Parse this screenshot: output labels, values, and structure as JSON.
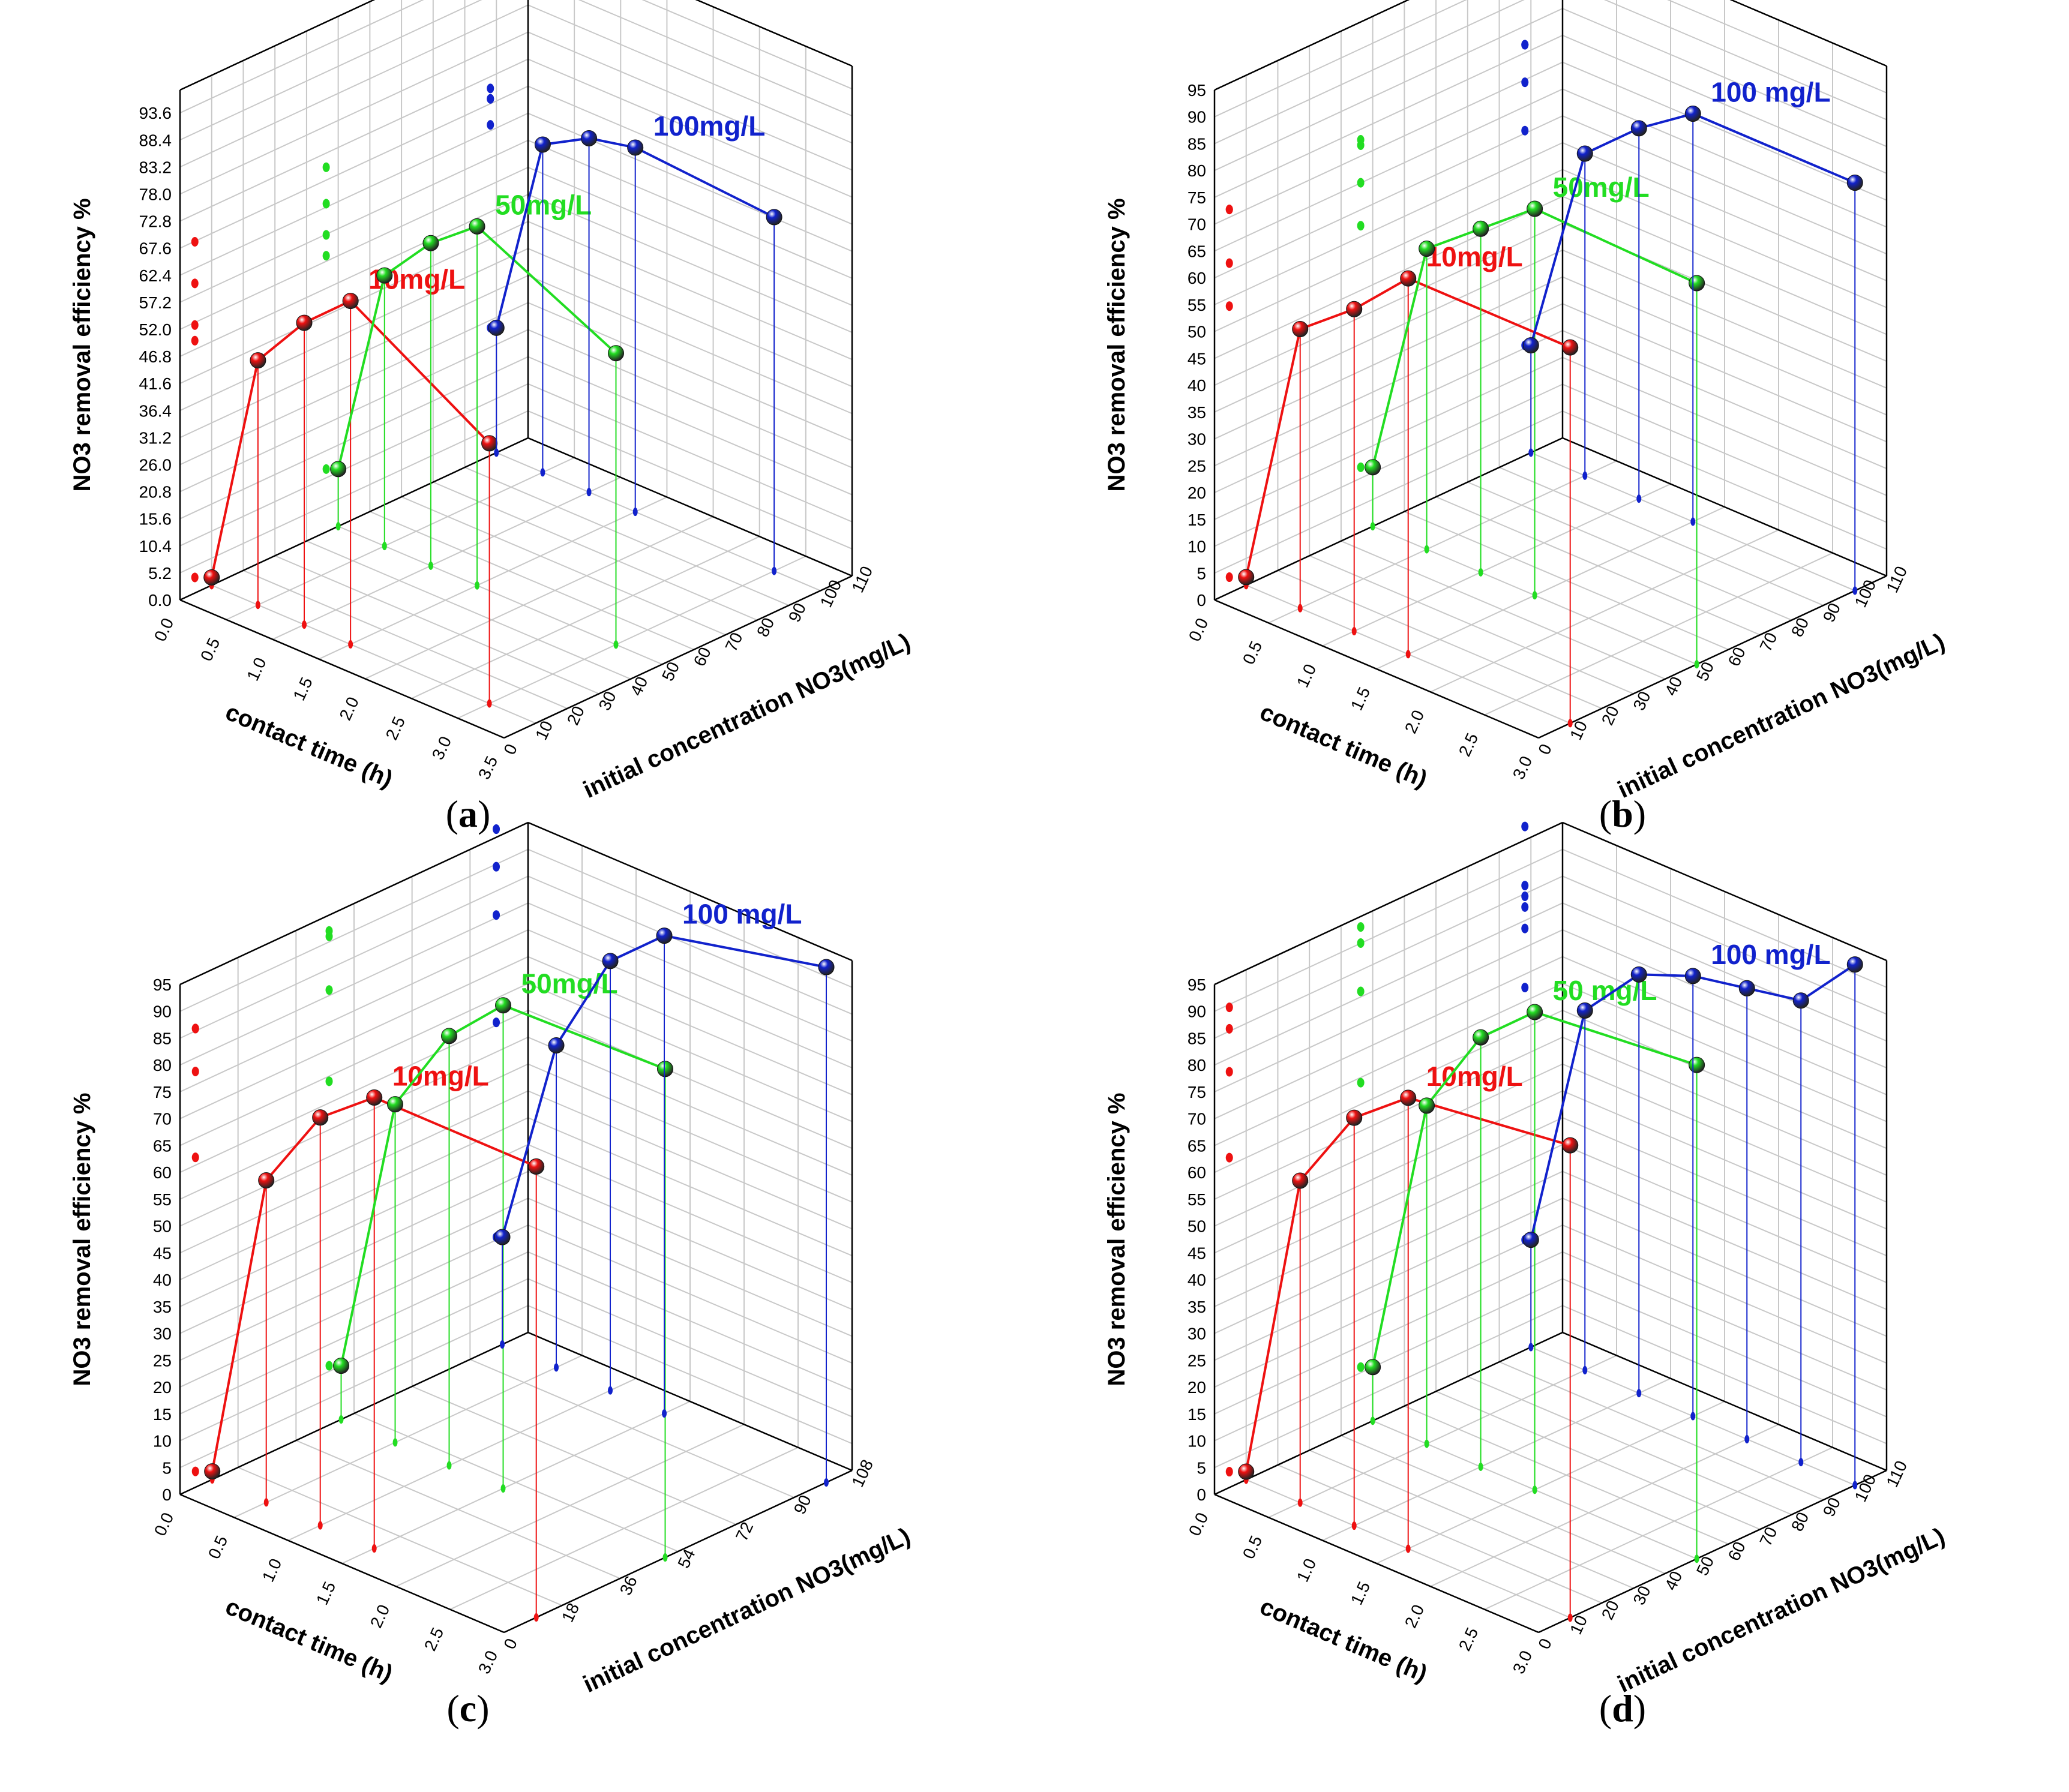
{
  "figure": {
    "captions": [
      "a",
      "b",
      "c",
      "d"
    ]
  },
  "chart_data": [
    {
      "type": "scatter",
      "panel": "a",
      "zlabel": "NO3 removal efficiency %",
      "xlabel": "contact time (h)",
      "ylabel": "initial concentration NO3(mg/L)",
      "zticks": [
        "0.0",
        "5.2",
        "10.4",
        "15.6",
        "20.8",
        "26.0",
        "31.2",
        "36.4",
        "41.6",
        "46.8",
        "52.0",
        "57.2",
        "62.4",
        "67.6",
        "72.8",
        "78.0",
        "83.2",
        "88.4",
        "93.6"
      ],
      "zlim": [
        0,
        98
      ],
      "xticks": [
        "0.0",
        "0.5",
        "1.0",
        "1.5",
        "2.0",
        "2.5",
        "3.0",
        "3.5"
      ],
      "xlim": [
        0,
        3.5
      ],
      "yticks": [
        "0",
        "10",
        "20",
        "30",
        "40",
        "50",
        "60",
        "70",
        "80",
        "90",
        "100",
        "110"
      ],
      "ylim": [
        0,
        110
      ],
      "series": [
        {
          "name": "10mg/L",
          "color": "#ee1111",
          "conc": 10,
          "x": [
            0.0,
            0.5,
            1.0,
            1.5,
            3.0
          ],
          "z": [
            1.5,
            47,
            58,
            66,
            50
          ]
        },
        {
          "name": "50mg/L",
          "color": "#22dd22",
          "conc": 50,
          "x": [
            0.0,
            0.5,
            1.0,
            1.5,
            3.0
          ],
          "z": [
            11,
            52,
            62,
            69,
            56
          ]
        },
        {
          "name": "100mg/L",
          "color": "#1122cc",
          "conc": 100,
          "x": [
            0.0,
            0.5,
            1.0,
            1.5,
            3.0
          ],
          "z": [
            24,
            63,
            68,
            70,
            68
          ]
        }
      ]
    },
    {
      "type": "scatter",
      "panel": "b",
      "zlabel": "NO3 removal efficiency %",
      "xlabel": "contact time (h)",
      "ylabel": "initial concentration NO3(mg/L)",
      "zticks": [
        "0",
        "5",
        "10",
        "15",
        "20",
        "25",
        "30",
        "35",
        "40",
        "45",
        "50",
        "55",
        "60",
        "65",
        "70",
        "75",
        "80",
        "85",
        "90",
        "95"
      ],
      "zlim": [
        0,
        95
      ],
      "xticks": [
        "0.0",
        "0.5",
        "1.0",
        "1.5",
        "2.0",
        "2.5",
        "3.0"
      ],
      "xlim": [
        0,
        3
      ],
      "yticks": [
        "0",
        "10",
        "20",
        "30",
        "40",
        "50",
        "60",
        "70",
        "80",
        "90",
        "100",
        "110"
      ],
      "ylim": [
        0,
        110
      ],
      "series": [
        {
          "name": "10mg/L",
          "color": "#ee1111",
          "conc": 10,
          "x": [
            0.0,
            0.5,
            1.0,
            1.5,
            3.0
          ],
          "z": [
            1.5,
            52,
            60,
            70,
            70
          ]
        },
        {
          "name": "50mg/L",
          "color": "#22dd22",
          "conc": 50,
          "x": [
            0.0,
            0.5,
            1.0,
            1.5,
            3.0
          ],
          "z": [
            11,
            56,
            64,
            72,
            71
          ]
        },
        {
          "name": "100 mg/L",
          "color": "#1122cc",
          "conc": 100,
          "x": [
            0.0,
            0.5,
            1.0,
            1.5,
            3.0
          ],
          "z": [
            20,
            60,
            69,
            76,
            76
          ]
        }
      ]
    },
    {
      "type": "scatter",
      "panel": "c",
      "zlabel": "NO3 removal efficiency %",
      "xlabel": "contact time (h)",
      "ylabel": "initial concentration NO3(mg/L)",
      "zticks": [
        "0",
        "5",
        "10",
        "15",
        "20",
        "25",
        "30",
        "35",
        "40",
        "45",
        "50",
        "55",
        "60",
        "65",
        "70",
        "75",
        "80",
        "85",
        "90",
        "95"
      ],
      "zlim": [
        0,
        95
      ],
      "xticks": [
        "0.0",
        "0.5",
        "1.0",
        "1.5",
        "2.0",
        "2.5",
        "3.0"
      ],
      "xlim": [
        0,
        3
      ],
      "yticks": [
        "0",
        "18",
        "36",
        "54",
        "72",
        "90",
        "108"
      ],
      "ylim": [
        0,
        108
      ],
      "series": [
        {
          "name": "10mg/L",
          "color": "#ee1111",
          "conc": 10,
          "x": [
            0.0,
            0.5,
            1.0,
            1.5,
            3.0
          ],
          "z": [
            1.5,
            60,
            76,
            84,
            84
          ]
        },
        {
          "name": "50mg/L",
          "color": "#22dd22",
          "conc": 50,
          "x": [
            0.0,
            0.5,
            1.0,
            1.5,
            3.0
          ],
          "z": [
            10,
            63,
            80,
            90,
            91
          ]
        },
        {
          "name": "100 mg/L",
          "color": "#1122cc",
          "conc": 100,
          "x": [
            0.0,
            0.5,
            1.0,
            1.5,
            3.0
          ],
          "z": [
            20,
            60,
            80,
            89,
            96
          ]
        }
      ]
    },
    {
      "type": "scatter",
      "panel": "d",
      "zlabel": "NO3 removal efficiency %",
      "xlabel": "contact time (h)",
      "ylabel": "initial concentration NO3(mg/L)",
      "zticks": [
        "0",
        "5",
        "10",
        "15",
        "20",
        "25",
        "30",
        "35",
        "40",
        "45",
        "50",
        "55",
        "60",
        "65",
        "70",
        "75",
        "80",
        "85",
        "90",
        "95"
      ],
      "zlim": [
        0,
        95
      ],
      "xticks": [
        "0.0",
        "0.5",
        "1.0",
        "1.5",
        "2.0",
        "2.5",
        "3.0"
      ],
      "xlim": [
        0,
        3
      ],
      "yticks": [
        "0",
        "10",
        "20",
        "30",
        "40",
        "50",
        "60",
        "70",
        "80",
        "90",
        "100",
        "110"
      ],
      "ylim": [
        0,
        110
      ],
      "series": [
        {
          "name": "10mg/L",
          "color": "#ee1111",
          "conc": 10,
          "x": [
            0.0,
            0.5,
            1.0,
            1.5,
            3.0
          ],
          "z": [
            1.5,
            60,
            76,
            84,
            88
          ]
        },
        {
          "name": "50 mg/L",
          "color": "#22dd22",
          "conc": 50,
          "x": [
            0.0,
            0.5,
            1.0,
            1.5,
            3.0
          ],
          "z": [
            10,
            63,
            80,
            89,
            92
          ]
        },
        {
          "name": "100 mg/L",
          "color": "#1122cc",
          "conc": 100,
          "x": [
            0.0,
            0.5,
            1.0,
            1.5,
            2.0,
            2.5,
            3.0
          ],
          "z": [
            20,
            67,
            78,
            82,
            84,
            86,
            97
          ]
        }
      ]
    }
  ]
}
